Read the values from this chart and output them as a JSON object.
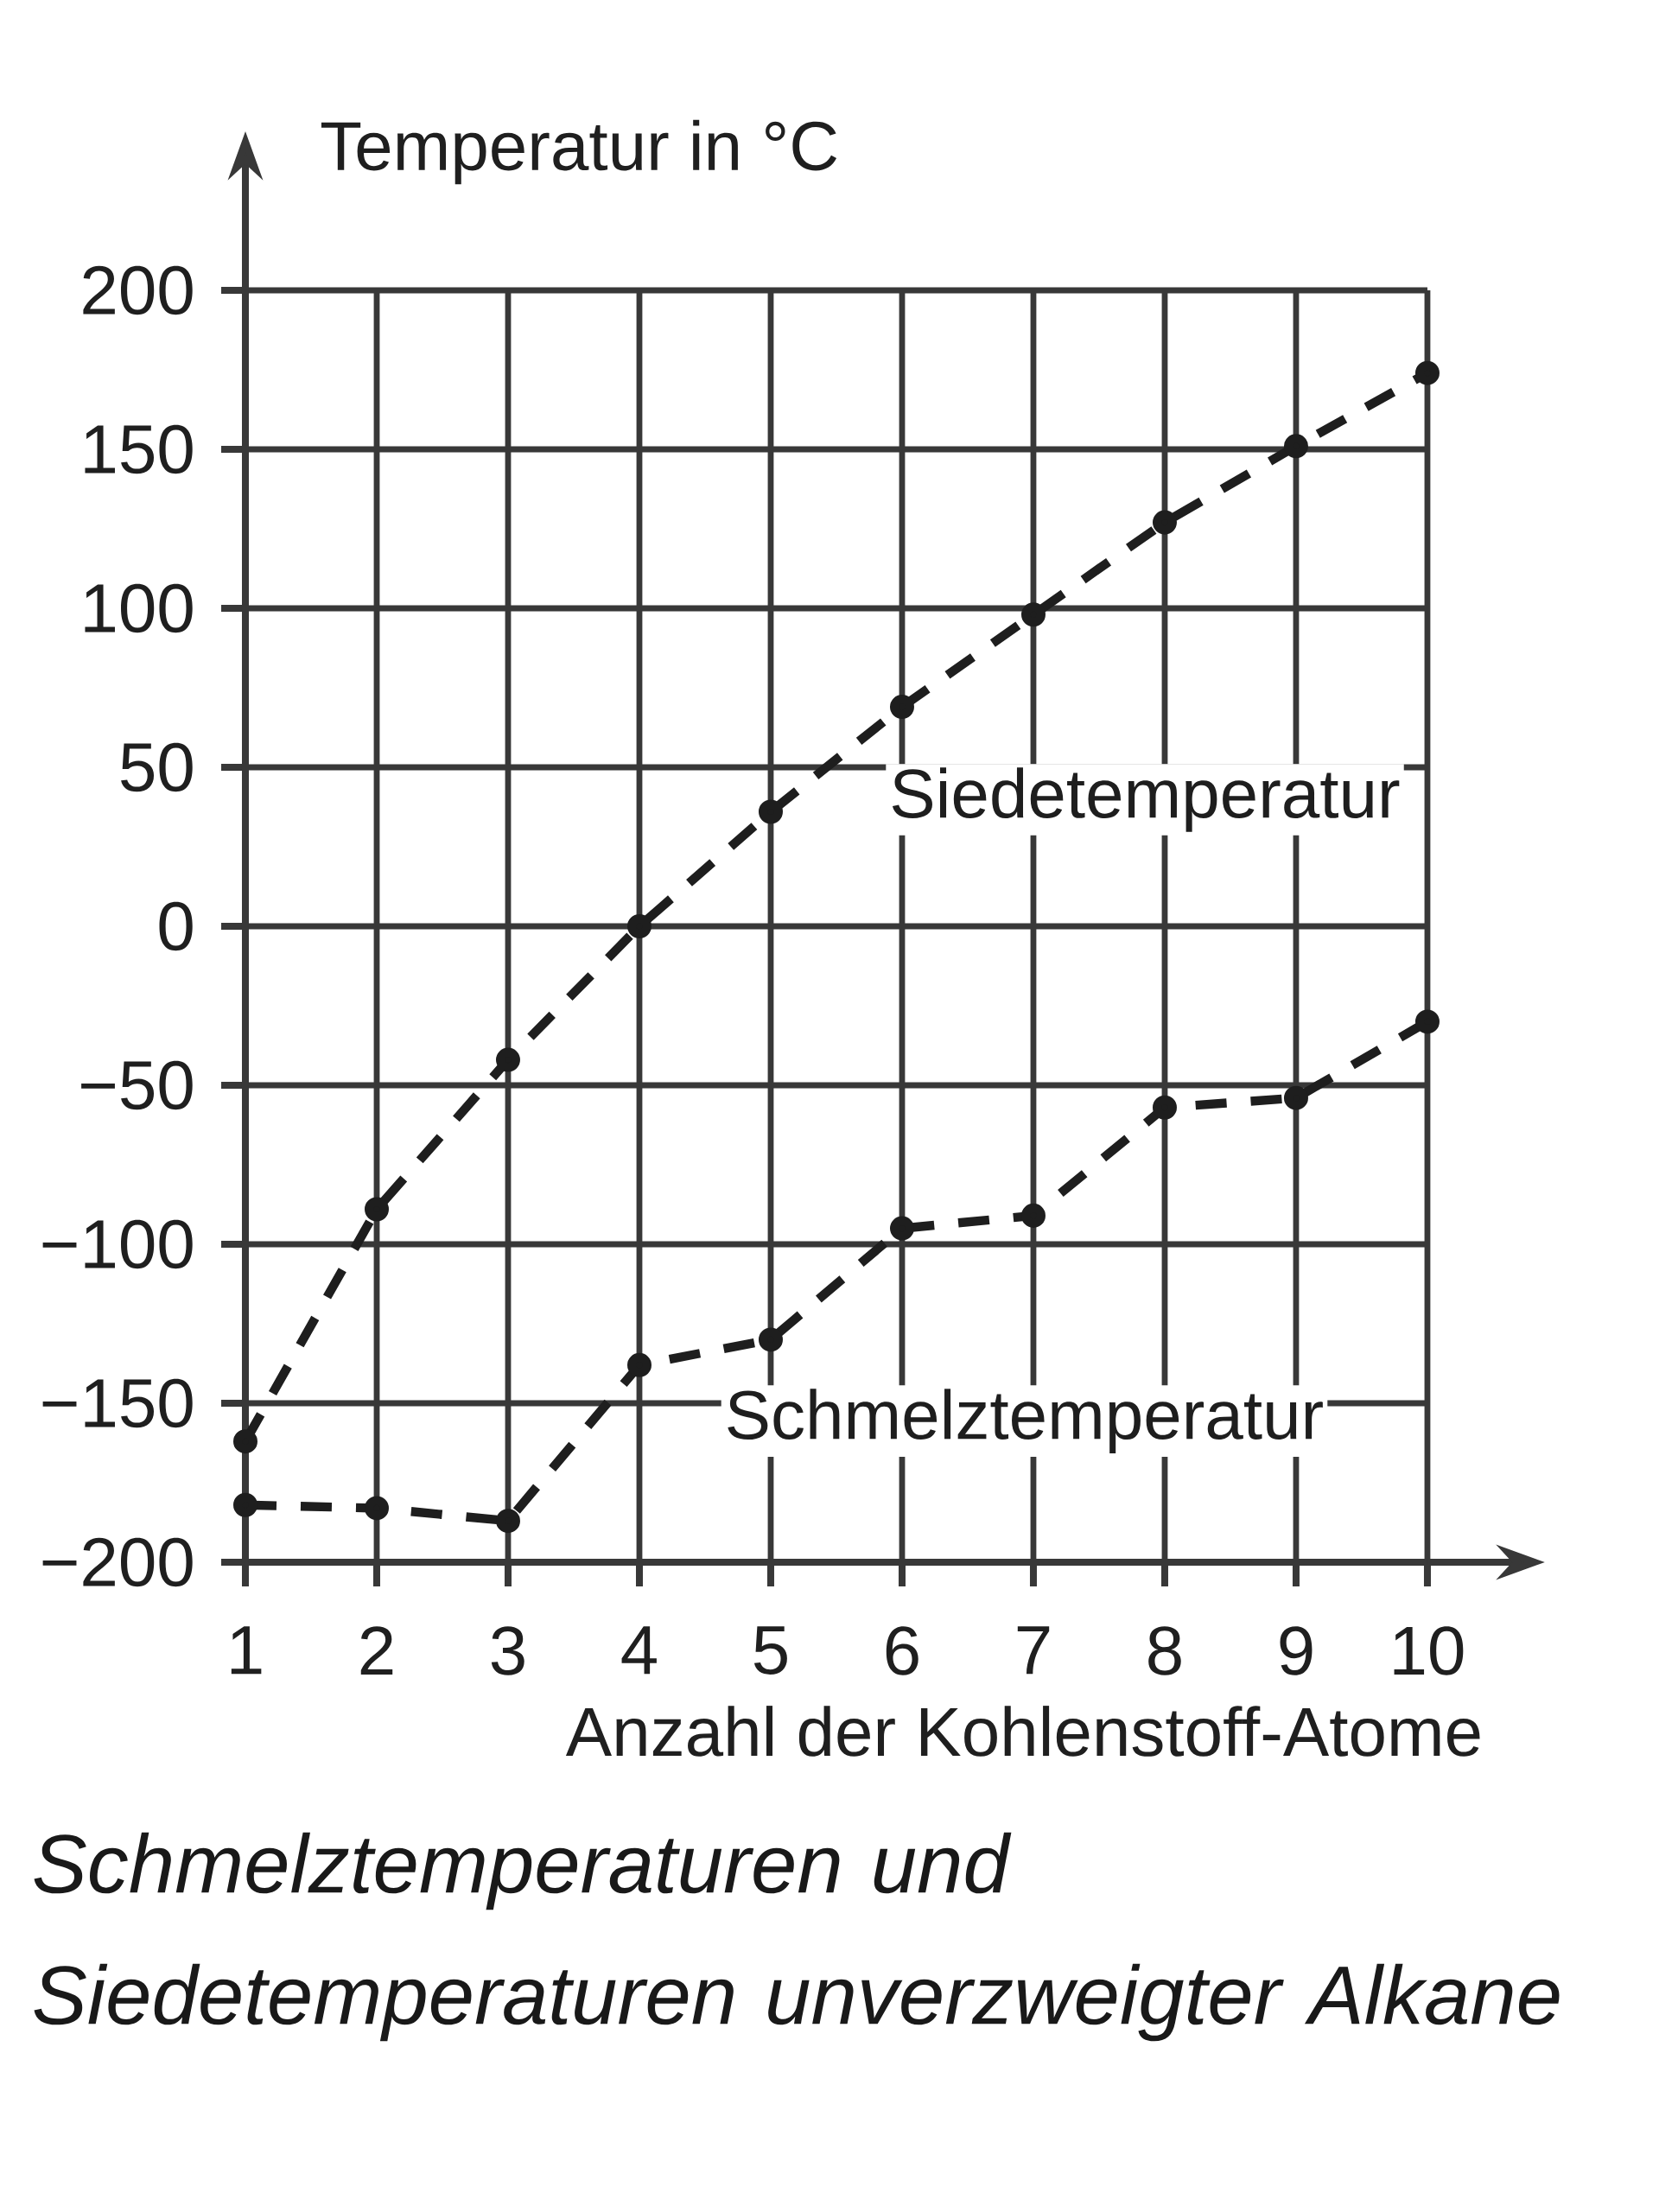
{
  "chart_data": {
    "type": "line",
    "x": [
      1,
      2,
      3,
      4,
      5,
      6,
      7,
      8,
      9,
      10
    ],
    "xlim": [
      1,
      10
    ],
    "xticks": [
      1,
      2,
      3,
      4,
      5,
      6,
      7,
      8,
      9,
      10
    ],
    "ylim": [
      -200,
      200
    ],
    "yticks": [
      {
        "value": -200,
        "label": "−200"
      },
      {
        "value": -150,
        "label": "−150"
      },
      {
        "value": -100,
        "label": "−100"
      },
      {
        "value": -50,
        "label": "−50"
      },
      0,
      50,
      100,
      150,
      200
    ],
    "xlabel": "Anzahl der Kohlenstoff-Atome",
    "ylabel": "Temperatur in °C",
    "series": [
      {
        "name": "Siedetemperatur",
        "color": "#1e1e1e",
        "values": [
          -162,
          -89,
          -42,
          0,
          36,
          69,
          98,
          127,
          151,
          174
        ]
      },
      {
        "name": "Schmelztemperatur",
        "color": "#1e1e1e",
        "values": [
          -182,
          -183,
          -187,
          -138,
          -130,
          -95,
          -91,
          -57,
          -54,
          -30
        ]
      }
    ],
    "grid": true,
    "marker": "circle",
    "line_style": "dashed",
    "annotations": [
      "Schmelztemperaturen und Siedetemperaturen unverzweigter Alkane"
    ]
  }
}
